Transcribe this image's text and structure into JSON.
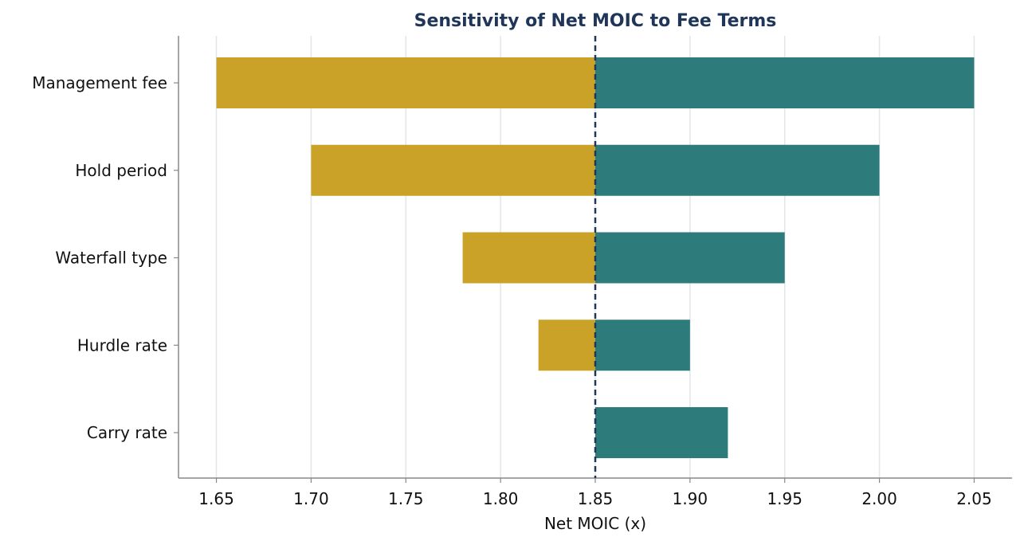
{
  "chart_data": {
    "type": "bar",
    "orientation": "horizontal",
    "title": "Sensitivity of Net MOIC to Fee Terms",
    "xlabel": "Net MOIC (x)",
    "ylabel": "",
    "xlim": [
      1.63,
      2.07
    ],
    "baseline": 1.85,
    "categories": [
      "Management fee",
      "Hold period",
      "Waterfall type",
      "Hurdle rate",
      "Carry rate"
    ],
    "series": [
      {
        "values": [
          1.65,
          1.7,
          1.78,
          1.82,
          1.85
        ],
        "color": "#c9a227"
      },
      {
        "values": [
          2.05,
          2.0,
          1.95,
          1.9,
          1.92
        ],
        "color": "#2e7b7c"
      }
    ],
    "x_ticks": [
      "1.65",
      "1.70",
      "1.75",
      "1.80",
      "1.85",
      "1.90",
      "1.95",
      "2.00",
      "2.05"
    ],
    "grid": "vertical",
    "legend": "none",
    "colors": {
      "low": "#c9a227",
      "high": "#2e7b7c",
      "baseline": "#1f3659",
      "title": "#1f3659",
      "grid": "#e3e5ea",
      "axis": "#888888"
    }
  }
}
